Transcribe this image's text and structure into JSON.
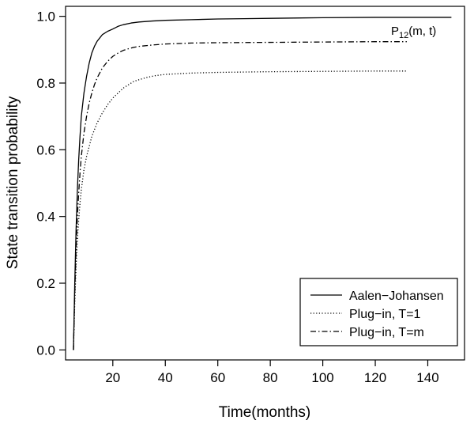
{
  "chart_data": {
    "type": "line",
    "title": "",
    "xlabel": "Time(months)",
    "ylabel": "State transition probability",
    "xlim": [
      2,
      154
    ],
    "ylim": [
      -0.03,
      1.03
    ],
    "xticks": [
      20,
      40,
      60,
      80,
      100,
      120,
      140
    ],
    "yticks": [
      0.0,
      0.2,
      0.4,
      0.6,
      0.8,
      1.0
    ],
    "xtick_labels": [
      "20",
      "40",
      "60",
      "80",
      "100",
      "120",
      "140"
    ],
    "ytick_labels": [
      "0.0",
      "0.2",
      "0.4",
      "0.6",
      "0.8",
      "1.0"
    ],
    "grid": false,
    "legend_position": "bottom-right",
    "annotation": {
      "base": "P",
      "subscript": "12",
      "rest": "(m, t)",
      "near": [
        110,
        0.98
      ]
    },
    "series": [
      {
        "name": "Aalen−Johansen",
        "linestyle": "solid",
        "x": [
          5,
          5.5,
          6,
          6.5,
          7,
          7.5,
          8,
          9,
          10,
          11,
          12,
          13,
          14,
          15,
          16,
          18,
          20,
          22,
          24,
          27,
          30,
          35,
          40,
          50,
          60,
          70,
          80,
          100,
          120,
          149
        ],
        "y": [
          0.0,
          0.2,
          0.36,
          0.48,
          0.57,
          0.64,
          0.7,
          0.77,
          0.82,
          0.86,
          0.89,
          0.91,
          0.925,
          0.935,
          0.945,
          0.955,
          0.962,
          0.97,
          0.975,
          0.98,
          0.983,
          0.986,
          0.988,
          0.99,
          0.992,
          0.993,
          0.994,
          0.996,
          0.997,
          0.997
        ]
      },
      {
        "name": "Plug−in, T=1",
        "linestyle": "dotted",
        "x": [
          5,
          5.5,
          6,
          6.5,
          7,
          7.5,
          8,
          9,
          10,
          11,
          12,
          13,
          14,
          16,
          18,
          20,
          22,
          24,
          26,
          28,
          30,
          33,
          36,
          40,
          50,
          60,
          80,
          100,
          120,
          132
        ],
        "y": [
          0.0,
          0.14,
          0.25,
          0.33,
          0.39,
          0.44,
          0.48,
          0.54,
          0.58,
          0.61,
          0.64,
          0.66,
          0.68,
          0.71,
          0.735,
          0.755,
          0.77,
          0.785,
          0.795,
          0.805,
          0.81,
          0.817,
          0.822,
          0.826,
          0.83,
          0.832,
          0.834,
          0.835,
          0.836,
          0.836
        ]
      },
      {
        "name": "Plug−in, T=m",
        "linestyle": "dashdot",
        "x": [
          5,
          5.5,
          6,
          6.5,
          7,
          7.5,
          8,
          9,
          10,
          11,
          12,
          13,
          14,
          16,
          18,
          20,
          22,
          24,
          26,
          28,
          30,
          35,
          40,
          50,
          60,
          80,
          100,
          120,
          132
        ],
        "y": [
          0.0,
          0.17,
          0.3,
          0.4,
          0.47,
          0.53,
          0.58,
          0.65,
          0.7,
          0.74,
          0.77,
          0.795,
          0.815,
          0.845,
          0.865,
          0.88,
          0.89,
          0.898,
          0.903,
          0.907,
          0.91,
          0.914,
          0.917,
          0.92,
          0.921,
          0.922,
          0.923,
          0.924,
          0.924
        ]
      }
    ]
  }
}
